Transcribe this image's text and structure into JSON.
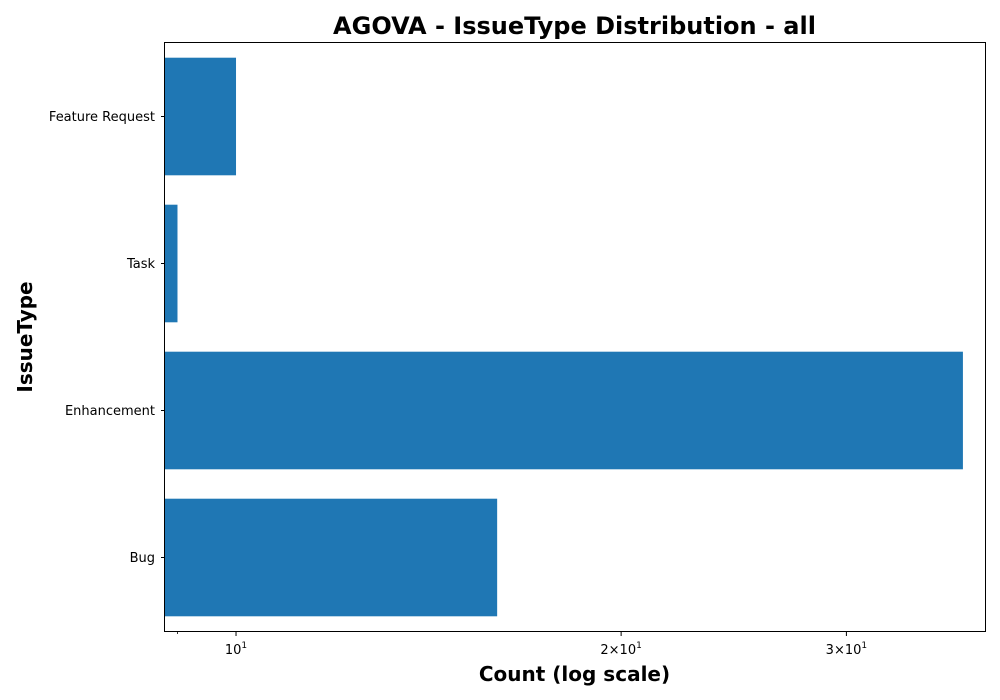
{
  "chart_data": {
    "type": "bar",
    "orientation": "horizontal",
    "title": "AGOVA - IssueType Distribution - all",
    "xlabel": "Count (log scale)",
    "ylabel": "IssueType",
    "x_scale": "log",
    "xlim": [
      8.8,
      38.5
    ],
    "x_major_ticks": [
      {
        "value": 10,
        "base": "10",
        "exp": "1"
      },
      {
        "value": 20,
        "base": "2×10",
        "exp": "1"
      },
      {
        "value": 30,
        "base": "3×10",
        "exp": "1"
      }
    ],
    "x_minor_ticks": [
      9
    ],
    "categories": [
      "Bug",
      "Enhancement",
      "Task",
      "Feature Request"
    ],
    "values": [
      16,
      37,
      9,
      10
    ],
    "bar_color": "#1f77b4",
    "grid": false,
    "legend": "none"
  }
}
